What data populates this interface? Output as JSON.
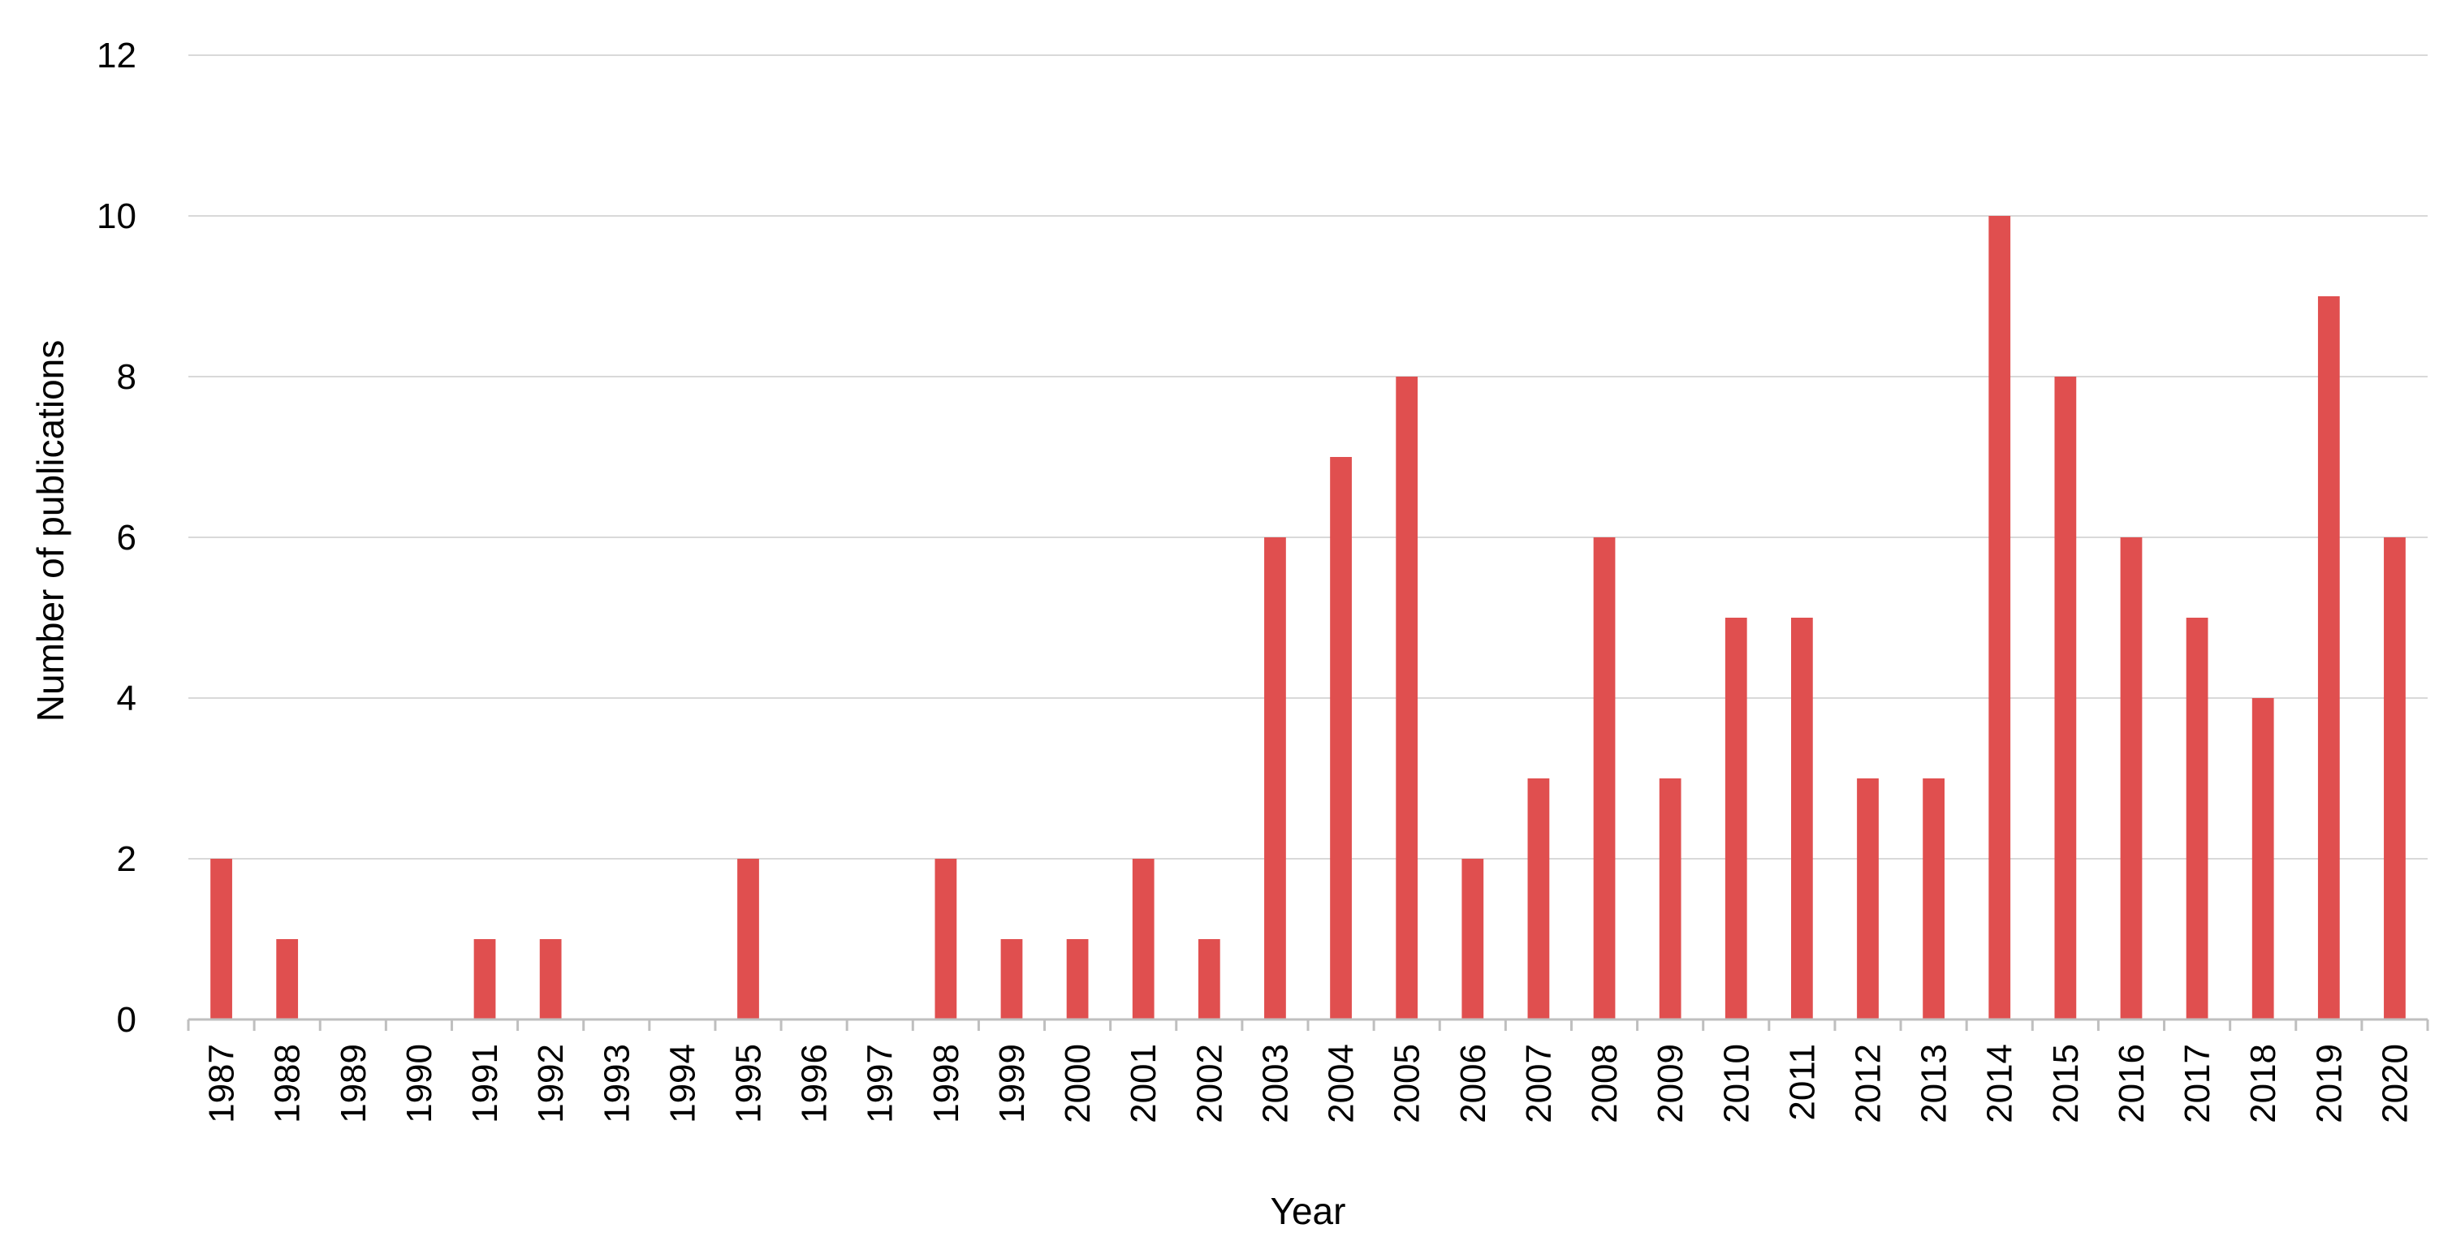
{
  "chart_data": {
    "type": "bar",
    "title": "",
    "xlabel": "Year",
    "ylabel": "Number of publications",
    "ylim": [
      0,
      12
    ],
    "yticks": [
      0,
      2,
      4,
      6,
      8,
      10,
      12
    ],
    "grid": true,
    "legend": "none",
    "categories": [
      "1987",
      "1988",
      "1989",
      "1990",
      "1991",
      "1992",
      "1993",
      "1994",
      "1995",
      "1996",
      "1997",
      "1998",
      "1999",
      "2000",
      "2001",
      "2002",
      "2003",
      "2004",
      "2005",
      "2006",
      "2007",
      "2008",
      "2009",
      "2010",
      "2011",
      "2012",
      "2013",
      "2014",
      "2015",
      "2016",
      "2017",
      "2018",
      "2019",
      "2020"
    ],
    "values": [
      2,
      1,
      0,
      0,
      1,
      1,
      0,
      0,
      2,
      0,
      0,
      2,
      1,
      1,
      2,
      1,
      6,
      7,
      8,
      2,
      3,
      6,
      3,
      5,
      5,
      3,
      3,
      10,
      8,
      6,
      5,
      4,
      9,
      6
    ],
    "colors": {
      "bar": "#e04f4f",
      "grid": "#d9d9d9",
      "axis": "#bfbfbf"
    }
  }
}
